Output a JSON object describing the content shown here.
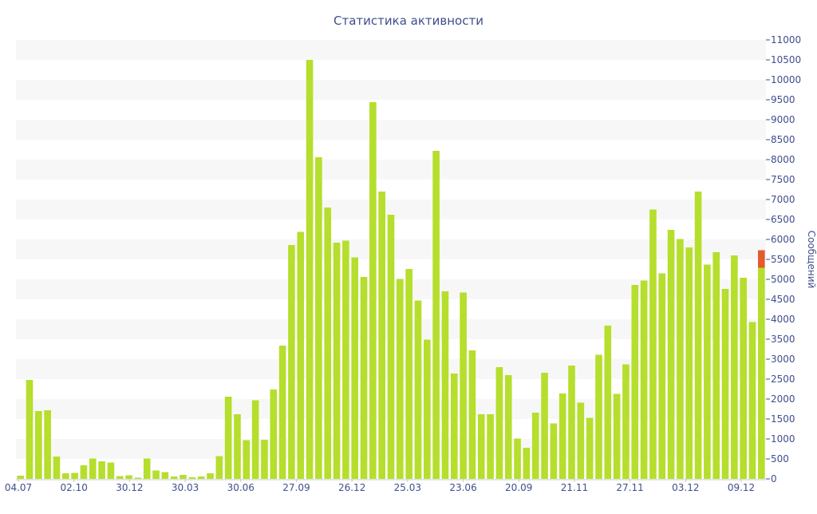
{
  "chart_data": {
    "type": "bar",
    "title": "Статистика активности",
    "xlabel": "",
    "ylabel": "Сообщений",
    "ylim": [
      0,
      11000
    ],
    "ytick_step": 500,
    "grid": "alternating horizontal bands",
    "colors": {
      "bar": "#b6de2c",
      "highlight": "#e45b2c",
      "band": "#f7f7f7",
      "axis_text": "#3f4e8c",
      "title": "#3f4e8c"
    },
    "x_ticks": [
      "04.07",
      "02.10",
      "30.12",
      "30.03",
      "30.06",
      "27.09",
      "26.12",
      "25.03",
      "23.06",
      "20.09",
      "21.11",
      "27.11",
      "03.12",
      "09.12"
    ],
    "values": [
      80,
      2480,
      1700,
      1720,
      560,
      140,
      150,
      340,
      510,
      440,
      410,
      70,
      90,
      30,
      510,
      210,
      170,
      60,
      100,
      40,
      60,
      140,
      570,
      2060,
      1620,
      970,
      1970,
      980,
      2240,
      3340,
      5860,
      6190,
      10500,
      8060,
      6800,
      5920,
      5970,
      5550,
      5060,
      9440,
      7200,
      6620,
      5010,
      5260,
      4470,
      3490,
      8220,
      4700,
      2640,
      4670,
      3220,
      1620,
      1620,
      2800,
      2600,
      1010,
      780,
      1660,
      2660,
      1390,
      2140,
      2840,
      1910,
      1530,
      3110,
      3840,
      2130,
      2870,
      4860,
      4970,
      6750,
      5150,
      6240,
      6010,
      5800,
      7200,
      5370,
      5680,
      4760,
      5600,
      5040,
      3930,
      5290
    ],
    "highlight_last": {
      "value": 5730
    }
  }
}
